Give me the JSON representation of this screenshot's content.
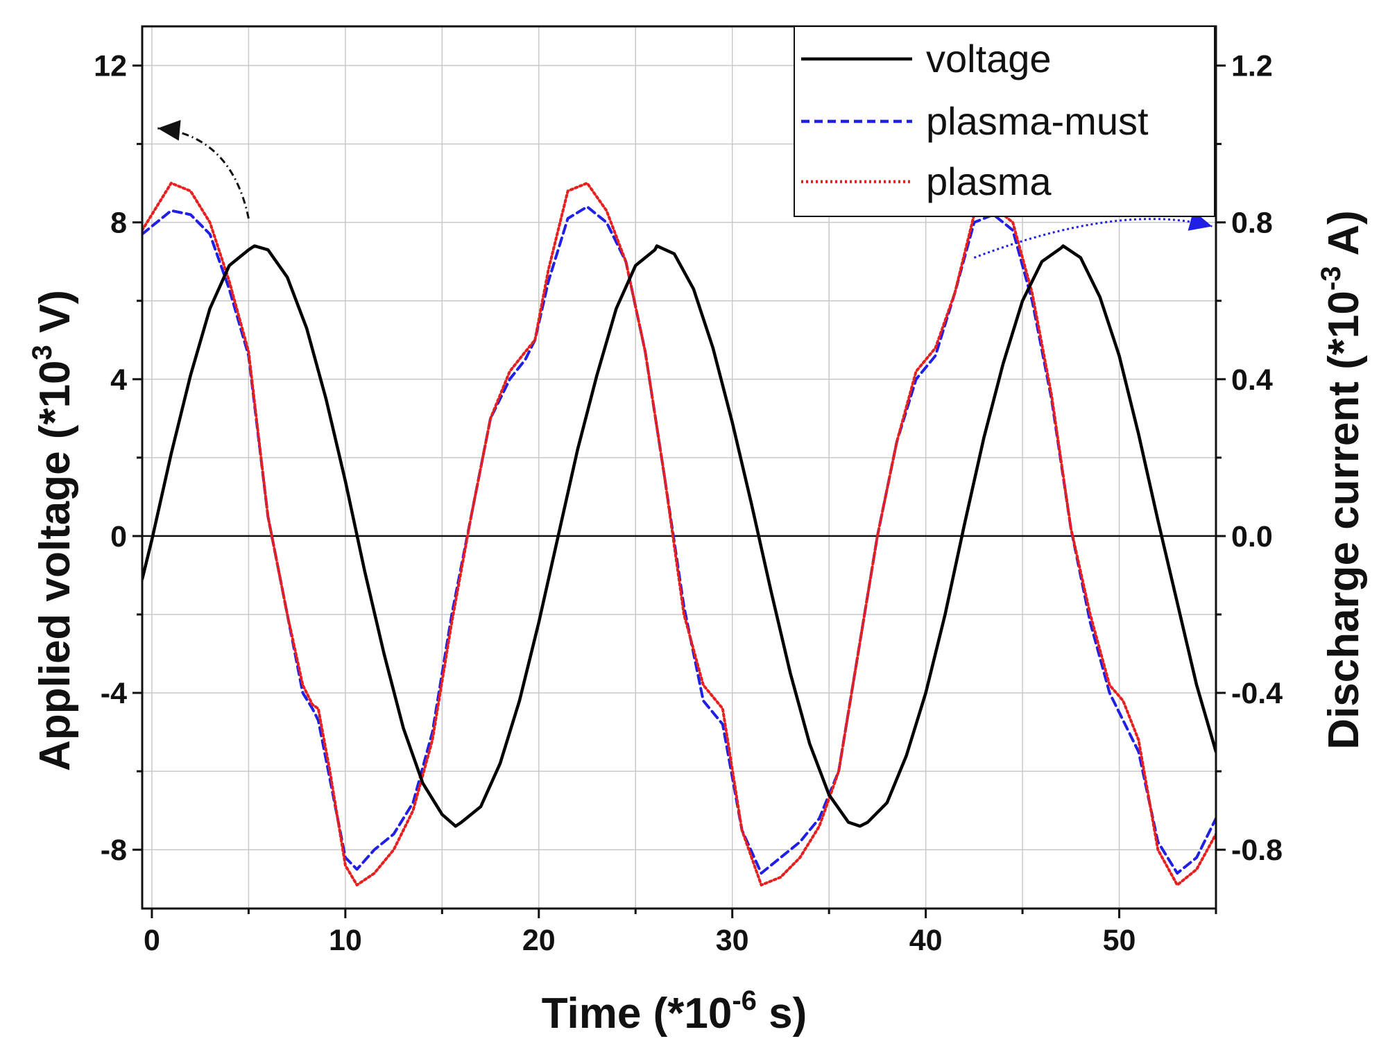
{
  "chart_data": {
    "type": "line",
    "title": "",
    "xlabel": {
      "prefix": "Time (*10",
      "sup": "-6",
      "suffix": " s)"
    },
    "ylabel_left": {
      "prefix": "Applied voltage (*10",
      "sup": "3",
      "suffix": " V)"
    },
    "ylabel_right": {
      "prefix": "Discharge current (*10",
      "sup": "-3",
      "suffix": " A)"
    },
    "xlim": [
      -0.5,
      55
    ],
    "ylim_left": [
      -9.5,
      13
    ],
    "ylim_right": [
      -0.95,
      1.3
    ],
    "x_ticks": [
      0,
      10,
      20,
      30,
      40,
      50
    ],
    "x_tick_labels": [
      "0",
      "10",
      "20",
      "30",
      "40",
      "50"
    ],
    "y_left_ticks": [
      -8,
      -4,
      0,
      4,
      8,
      12
    ],
    "y_left_tick_labels": [
      "-8",
      "-4",
      "0",
      "4",
      "8",
      "12"
    ],
    "y_right_ticks": [
      -0.8,
      -0.4,
      0.0,
      0.4,
      0.8,
      1.2
    ],
    "y_right_tick_labels": [
      "-0.8",
      "-0.4",
      "0.0",
      "0.4",
      "0.8",
      "1.2"
    ],
    "grid": true,
    "legend_position": "top-right",
    "series": [
      {
        "name": "voltage",
        "axis": "left",
        "color": "#000000",
        "style": "solid",
        "x": [
          -0.5,
          0,
          1,
          2,
          3,
          4,
          5,
          5.3,
          6,
          7,
          8,
          9,
          10,
          11,
          12,
          13,
          14,
          15,
          15.7,
          16,
          17,
          18,
          19,
          20,
          21,
          22,
          23,
          24,
          25,
          26,
          26.1,
          27,
          28,
          29,
          30,
          31,
          32,
          33,
          34,
          35,
          36,
          36.6,
          37,
          38,
          39,
          40,
          41,
          42,
          43,
          44,
          45,
          46,
          47,
          47.1,
          48,
          49,
          50,
          51,
          52,
          53,
          54,
          55
        ],
        "values": [
          -1.1,
          -0.1,
          2.1,
          4.1,
          5.8,
          6.9,
          7.3,
          7.4,
          7.3,
          6.6,
          5.3,
          3.5,
          1.4,
          -0.9,
          -3.0,
          -4.9,
          -6.3,
          -7.1,
          -7.4,
          -7.3,
          -6.9,
          -5.8,
          -4.2,
          -2.2,
          0.0,
          2.2,
          4.1,
          5.8,
          6.9,
          7.3,
          7.4,
          7.2,
          6.3,
          4.8,
          2.9,
          0.8,
          -1.4,
          -3.5,
          -5.3,
          -6.6,
          -7.3,
          -7.4,
          -7.3,
          -6.8,
          -5.6,
          -4.0,
          -2.0,
          0.3,
          2.5,
          4.4,
          6.0,
          7.0,
          7.35,
          7.4,
          7.1,
          6.1,
          4.6,
          2.6,
          0.4,
          -1.7,
          -3.8,
          -5.5
        ]
      },
      {
        "name": "plasma-must",
        "axis": "right",
        "color": "#1f1fe6",
        "style": "dashed",
        "x": [
          -0.5,
          0,
          1,
          2,
          3,
          4,
          5,
          6,
          7,
          7.8,
          8.3,
          8.6,
          9.2,
          10,
          10.6,
          11.5,
          12.5,
          13.5,
          14.5,
          15.5,
          16.5,
          17.5,
          18.5,
          19.3,
          19.8,
          20.5,
          21.5,
          22.5,
          23.5,
          24.5,
          25.5,
          26.5,
          27.5,
          28.5,
          29.5,
          30.5,
          31.5,
          32.5,
          33.5,
          34.5,
          35.5,
          36.5,
          37.5,
          38.5,
          39.5,
          40.5,
          41.5,
          42.5,
          43.5,
          44.5,
          45.5,
          46.5,
          47.5,
          48.5,
          49.5,
          50.2,
          51,
          52,
          53,
          54,
          55
        ],
        "values": [
          0.77,
          0.79,
          0.83,
          0.82,
          0.77,
          0.63,
          0.46,
          0.05,
          -0.2,
          -0.4,
          -0.44,
          -0.47,
          -0.62,
          -0.82,
          -0.85,
          -0.8,
          -0.76,
          -0.68,
          -0.5,
          -0.2,
          0.05,
          0.3,
          0.4,
          0.45,
          0.5,
          0.65,
          0.81,
          0.84,
          0.8,
          0.7,
          0.47,
          0.15,
          -0.18,
          -0.42,
          -0.48,
          -0.75,
          -0.86,
          -0.82,
          -0.78,
          -0.72,
          -0.6,
          -0.3,
          0.0,
          0.24,
          0.4,
          0.46,
          0.62,
          0.8,
          0.82,
          0.78,
          0.6,
          0.35,
          0.02,
          -0.22,
          -0.4,
          -0.47,
          -0.55,
          -0.78,
          -0.86,
          -0.82,
          -0.72
        ]
      },
      {
        "name": "plasma",
        "axis": "right",
        "color": "#e61f1f",
        "style": "dotted",
        "x": [
          -0.5,
          0,
          1,
          2,
          3,
          4,
          5,
          6,
          7,
          7.8,
          8.3,
          8.6,
          9.2,
          10,
          10.6,
          11.5,
          12.5,
          13.5,
          14.5,
          15.5,
          16.5,
          17.5,
          18.5,
          19.3,
          19.8,
          20.5,
          21.5,
          22.5,
          23.5,
          24.5,
          25.5,
          26.5,
          27.5,
          28.5,
          29.5,
          30.5,
          31.5,
          32.5,
          33.5,
          34.5,
          35.5,
          36.5,
          37.5,
          38.5,
          39.5,
          40.5,
          41.5,
          42.5,
          43.5,
          44.5,
          45.5,
          46.5,
          47.5,
          48.5,
          49.5,
          50.2,
          51,
          52,
          53,
          54,
          55
        ],
        "values": [
          0.78,
          0.82,
          0.9,
          0.88,
          0.8,
          0.65,
          0.47,
          0.05,
          -0.2,
          -0.38,
          -0.43,
          -0.44,
          -0.6,
          -0.84,
          -0.89,
          -0.86,
          -0.8,
          -0.7,
          -0.52,
          -0.22,
          0.05,
          0.3,
          0.42,
          0.47,
          0.5,
          0.68,
          0.88,
          0.9,
          0.83,
          0.7,
          0.47,
          0.15,
          -0.2,
          -0.38,
          -0.44,
          -0.75,
          -0.89,
          -0.87,
          -0.82,
          -0.74,
          -0.6,
          -0.3,
          0.0,
          0.24,
          0.42,
          0.48,
          0.62,
          0.82,
          0.84,
          0.8,
          0.62,
          0.36,
          0.02,
          -0.2,
          -0.38,
          -0.42,
          -0.52,
          -0.8,
          -0.89,
          -0.85,
          -0.76
        ]
      }
    ],
    "annotations": [
      {
        "type": "arrow",
        "color": "#111111",
        "style": "dash-dot",
        "meaning": "voltage-to-left-axis",
        "from": {
          "x": 5.0,
          "y_left": 8.1
        },
        "to": {
          "x": 0.3,
          "y_left": 10.4
        }
      },
      {
        "type": "arrow",
        "color": "#1f1fe6",
        "style": "dotted",
        "meaning": "current-to-right-axis",
        "from": {
          "x": 42.5,
          "y_left": 7.1
        },
        "to": {
          "x": 54.8,
          "y_left": 7.9
        }
      }
    ]
  }
}
